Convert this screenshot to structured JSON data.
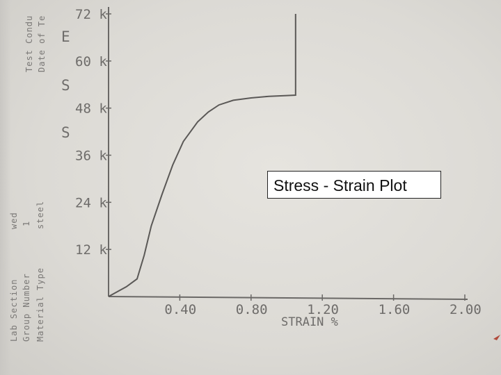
{
  "chart_data": {
    "type": "line",
    "title": "Stress - Strain Plot",
    "xlabel": "STRAIN %",
    "ylabel_letters": [
      "E",
      "S",
      "S"
    ],
    "x_ticks": [
      "0.40",
      "0.80",
      "1.20",
      "1.60",
      "2.00"
    ],
    "y_ticks": [
      "12 k",
      "24 k",
      "36 k",
      "48 k",
      "60 k",
      "72 k"
    ],
    "xlim": [
      0,
      2.0
    ],
    "ylim": [
      0,
      72
    ],
    "grid": false,
    "series": [
      {
        "x": [
          0,
          0.1,
          0.16,
          0.2,
          0.24,
          0.3,
          0.36,
          0.42,
          0.5,
          0.56,
          0.62,
          0.7,
          0.8,
          0.9,
          1.0,
          1.05,
          1.05
        ],
        "y": [
          0,
          2.5,
          4.5,
          10.5,
          18.0,
          26.0,
          33.5,
          39.5,
          44.5,
          47.0,
          48.8,
          50.0,
          50.6,
          51.0,
          51.2,
          51.3,
          72.0
        ]
      }
    ],
    "line_color": "#5a5856"
  },
  "side_labels": {
    "left_col": "Lab Section",
    "left_col2": "Group Number",
    "left_col3": "Material Type",
    "values": [
      "wed",
      "1",
      "steel"
    ],
    "top_col": "Test Condu",
    "top_col2": "Date of Te"
  }
}
